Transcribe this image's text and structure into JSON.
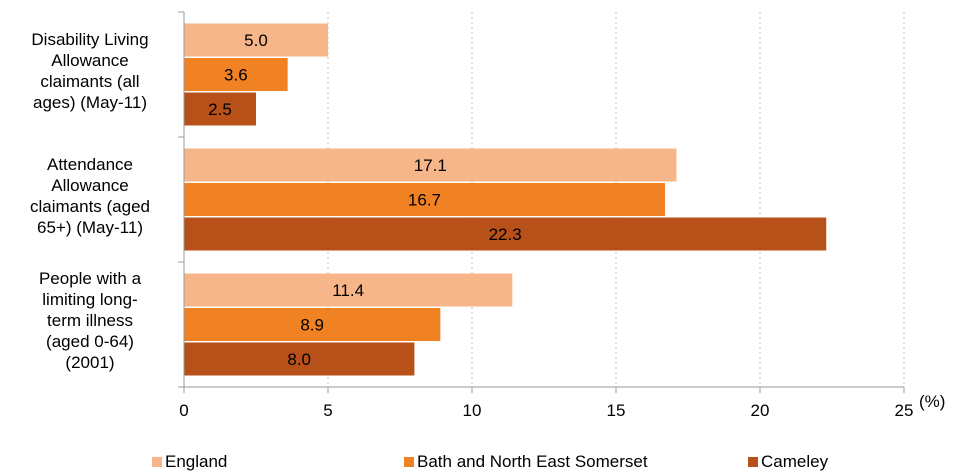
{
  "chart_data": {
    "type": "bar",
    "orientation": "horizontal",
    "categories": [
      "Disability Living Allowance claimants (all ages) (May-11)",
      "Attendance Allowance claimants (aged 65+) (May-11)",
      "People with a limiting long-term illness (aged 0-64) (2001)"
    ],
    "category_lines": [
      [
        "Disability Living",
        "Allowance",
        "claimants (all",
        "ages) (May-11)"
      ],
      [
        "Attendance",
        "Allowance",
        "claimants (aged",
        "65+) (May-11)"
      ],
      [
        "People with a",
        "limiting long-",
        "term illness",
        "(aged 0-64)",
        "(2001)"
      ]
    ],
    "series": [
      {
        "name": "England",
        "color": "#F7B68A",
        "values": [
          5.0,
          17.1,
          11.4
        ]
      },
      {
        "name": "Bath and North East Somerset",
        "color": "#F08223",
        "values": [
          3.6,
          16.7,
          8.9
        ]
      },
      {
        "name": "Cameley",
        "color": "#B8501A",
        "values": [
          2.5,
          22.3,
          8.0
        ]
      }
    ],
    "data_labels": [
      [
        "5.0",
        "3.6",
        "2.5"
      ],
      [
        "17.1",
        "16.7",
        "22.3"
      ],
      [
        "11.4",
        "8.9",
        "8.0"
      ]
    ],
    "xlim": [
      0,
      25
    ],
    "x_ticks": [
      "0",
      "5",
      "10",
      "15",
      "20",
      "25"
    ],
    "xlabel": "(%)",
    "grid": "vertical dotted",
    "legend_position": "bottom"
  }
}
